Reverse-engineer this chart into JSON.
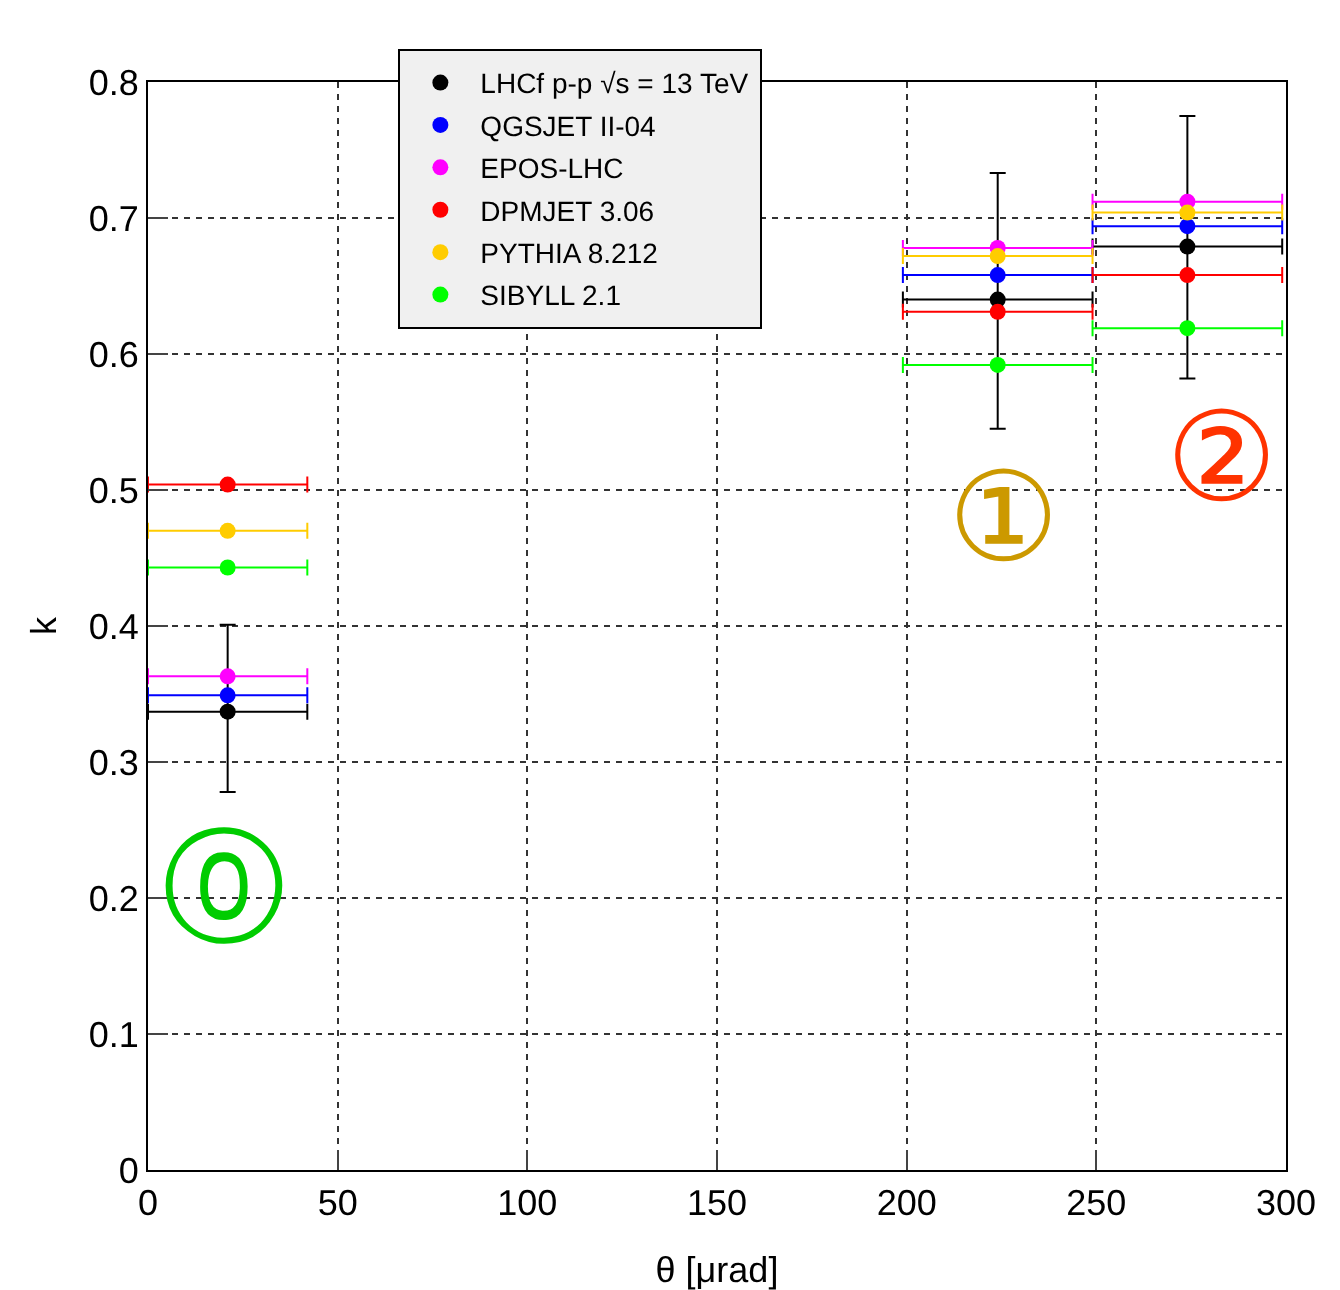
{
  "chart_data": {
    "type": "scatter",
    "xlabel": "θ [μrad]",
    "ylabel": "k",
    "x": [
      21,
      224,
      274
    ],
    "series": [
      {
        "name": "LHCf p-p √s = 13 TeV",
        "color": "#000000",
        "values": [
          0.337,
          0.64,
          0.679
        ],
        "errors": [
          [
            0.278,
            0.401
          ],
          [
            0.545,
            0.733
          ],
          [
            0.582,
            0.775
          ]
        ],
        "xerrors": [
          21,
          25,
          25
        ]
      },
      {
        "name": "QGSJET II-04",
        "color": "#0000ff",
        "values": [
          0.349,
          0.658,
          0.694
        ],
        "xerrors": [
          21,
          25,
          25
        ]
      },
      {
        "name": "EPOS-LHC",
        "color": "#ff00ff",
        "values": [
          0.363,
          0.678,
          0.712
        ],
        "xerrors": [
          21,
          25,
          25
        ]
      },
      {
        "name": "DPMJET 3.06",
        "color": "#ff0000",
        "values": [
          0.504,
          0.631,
          0.658
        ],
        "xerrors": [
          21,
          25,
          25
        ]
      },
      {
        "name": "PYTHIA 8.212",
        "color": "#ffcc00",
        "values": [
          0.47,
          0.672,
          0.704
        ],
        "xerrors": [
          21,
          25,
          25
        ]
      },
      {
        "name": "SIBYLL 2.1",
        "color": "#00ff00",
        "values": [
          0.443,
          0.592,
          0.619
        ],
        "xerrors": [
          21,
          25,
          25
        ]
      }
    ],
    "annotations": [
      "⓪",
      "①",
      "②"
    ],
    "xlim": [
      0,
      300
    ],
    "xticks": [
      0,
      50,
      100,
      150,
      200,
      250,
      300
    ],
    "ylim": [
      0,
      0.8
    ],
    "yticks": [
      0,
      0.1,
      0.2,
      0.3,
      0.4,
      0.5,
      0.6,
      0.7,
      0.8
    ],
    "grid": true,
    "legend": "top left",
    "marker": "circle"
  }
}
